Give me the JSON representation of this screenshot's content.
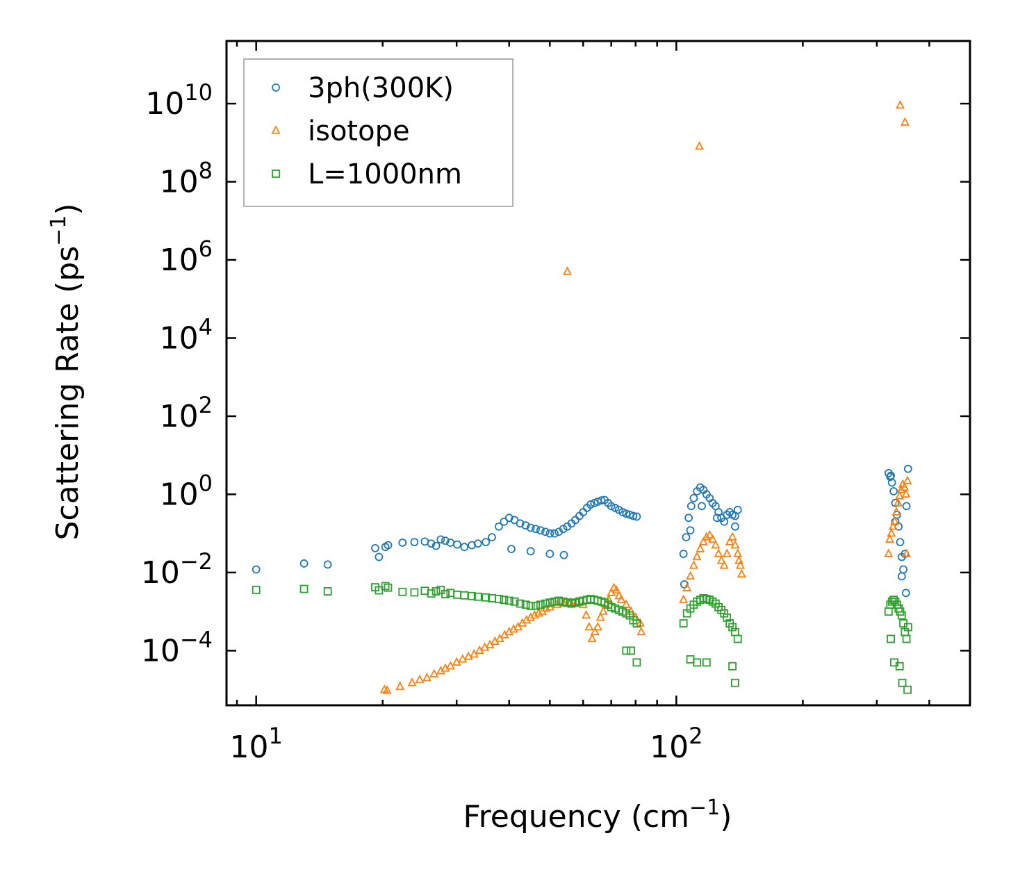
{
  "chart_data": {
    "type": "scatter",
    "title": "",
    "xlabel": "Frequency (cm",
    "xlabel_sup": "−1",
    "xlabel_end": ")",
    "ylabel": "Scattering Rate (ps",
    "ylabel_sup": "−1",
    "ylabel_end": ")",
    "xscale": "log",
    "yscale": "log",
    "xlim": [
      8.5,
      500
    ],
    "ylim": [
      4e-06,
      400000000000
    ],
    "x_ticks": [
      {
        "value": 10,
        "base": "10",
        "exp": "1"
      },
      {
        "value": 100,
        "base": "10",
        "exp": "2"
      }
    ],
    "y_ticks": [
      {
        "value": 0.0001,
        "base": "10",
        "exp": "−4"
      },
      {
        "value": 0.01,
        "base": "10",
        "exp": "−2"
      },
      {
        "value": 1,
        "base": "10",
        "exp": "0"
      },
      {
        "value": 100,
        "base": "10",
        "exp": "2"
      },
      {
        "value": 10000,
        "base": "10",
        "exp": "4"
      },
      {
        "value": 1000000,
        "base": "10",
        "exp": "6"
      },
      {
        "value": 100000000,
        "base": "10",
        "exp": "8"
      },
      {
        "value": 10000000000,
        "base": "10",
        "exp": "10"
      }
    ],
    "legend_position": "top-left",
    "series": [
      {
        "name": "3ph(300K)",
        "marker": "circle",
        "color": "#1f77b4",
        "x": [
          10.0,
          13.0,
          14.8,
          19.2,
          19.6,
          20.3,
          20.6,
          22.3,
          23.8,
          25.2,
          26.1,
          26.8,
          27.5,
          28.2,
          29.0,
          30.1,
          31.3,
          32.6,
          33.7,
          35.2,
          36.4,
          37.8,
          38.9,
          40.0,
          41.2,
          42.5,
          43.8,
          45.0,
          46.3,
          47.5,
          48.8,
          50.0,
          51.3,
          52.5,
          53.8,
          55.0,
          56.3,
          57.5,
          58.8,
          60.0,
          61.3,
          62.5,
          63.8,
          65.0,
          66.3,
          67.5,
          68.8,
          70.0,
          71.5,
          73.0,
          74.5,
          76.0,
          77.5,
          79.0,
          80.5,
          40.5,
          45.0,
          50.0,
          54.0,
          104.0,
          105.5,
          107.0,
          108.5,
          110.0,
          112.0,
          114.0,
          116.0,
          118.0,
          120.0,
          122.0,
          124.0,
          126.0,
          128.0,
          130.0,
          132.0,
          134.0,
          136.0,
          138.0,
          140.0,
          104.5,
          108.0,
          115.0,
          125.0,
          138.0,
          320.0,
          323.0,
          326.0,
          329.0,
          332.0,
          335.0,
          338.0,
          341.0,
          344.0,
          347.0,
          350.0,
          353.0,
          356.0,
          324.0,
          332.0,
          344.0,
          352.0
        ],
        "y": [
          0.012,
          0.017,
          0.016,
          0.042,
          0.025,
          0.045,
          0.05,
          0.058,
          0.06,
          0.062,
          0.055,
          0.048,
          0.07,
          0.065,
          0.058,
          0.052,
          0.045,
          0.05,
          0.055,
          0.06,
          0.08,
          0.15,
          0.2,
          0.25,
          0.22,
          0.18,
          0.16,
          0.14,
          0.13,
          0.12,
          0.11,
          0.1,
          0.1,
          0.11,
          0.13,
          0.15,
          0.18,
          0.22,
          0.28,
          0.35,
          0.45,
          0.55,
          0.6,
          0.65,
          0.7,
          0.72,
          0.6,
          0.5,
          0.45,
          0.4,
          0.35,
          0.32,
          0.3,
          0.28,
          0.27,
          0.04,
          0.035,
          0.03,
          0.028,
          0.03,
          0.08,
          0.25,
          0.5,
          0.8,
          1.2,
          1.5,
          1.3,
          1.0,
          0.8,
          0.6,
          0.5,
          0.35,
          0.25,
          0.2,
          0.3,
          0.35,
          0.3,
          0.28,
          0.4,
          0.005,
          0.12,
          0.5,
          0.25,
          0.15,
          3.5,
          2.8,
          2.0,
          1.2,
          0.6,
          0.3,
          0.15,
          0.06,
          0.025,
          0.012,
          0.03,
          0.5,
          4.5,
          3.0,
          0.2,
          0.008,
          0.003
        ]
      },
      {
        "name": "isotope",
        "marker": "triangle",
        "color": "#ff7f0e",
        "x": [
          20.2,
          20.5,
          22.0,
          23.5,
          24.5,
          25.5,
          26.5,
          27.5,
          28.2,
          29.0,
          30.0,
          31.0,
          32.0,
          33.0,
          34.0,
          35.0,
          36.0,
          37.0,
          38.0,
          39.0,
          40.0,
          41.0,
          42.0,
          43.0,
          44.0,
          45.0,
          46.0,
          47.0,
          48.0,
          49.0,
          50.0,
          52.0,
          54.0,
          56.0,
          58.0,
          60.0,
          61.0,
          62.0,
          63.0,
          64.0,
          65.0,
          66.0,
          67.0,
          68.0,
          69.0,
          70.0,
          71.0,
          72.0,
          73.0,
          74.0,
          76.0,
          78.0,
          80.0,
          82.0,
          82.5,
          55.0,
          104.0,
          106.0,
          108.0,
          110.0,
          112.0,
          114.0,
          116.0,
          118.0,
          120.0,
          122.0,
          124.0,
          126.0,
          128.0,
          130.0,
          132.0,
          134.0,
          136.0,
          138.0,
          140.0,
          141.0,
          142.0,
          143.0,
          113.5,
          320.0,
          322.0,
          325.0,
          328.0,
          331.0,
          334.0,
          337.0,
          340.0,
          343.0,
          346.0,
          349.0,
          352.0,
          355.0,
          341.0,
          350.0,
          353.0
        ],
        "y": [
          1e-05,
          9.5e-06,
          1.2e-05,
          1.5e-05,
          1.8e-05,
          2e-05,
          2.5e-05,
          3e-05,
          3.5e-05,
          4e-05,
          5e-05,
          6e-05,
          7e-05,
          8e-05,
          0.0001,
          0.00012,
          0.00014,
          0.00017,
          0.0002,
          0.00025,
          0.0003,
          0.00035,
          0.0004,
          0.0005,
          0.0006,
          0.0007,
          0.0008,
          0.0009,
          0.001,
          0.0012,
          0.0013,
          0.0015,
          0.0016,
          0.0017,
          0.0018,
          0.0015,
          0.0008,
          0.0004,
          0.0002,
          0.0003,
          0.0004,
          0.0007,
          0.001,
          0.0015,
          0.002,
          0.003,
          0.004,
          0.0035,
          0.0025,
          0.002,
          0.0015,
          0.001,
          0.0007,
          0.0005,
          0.0003,
          500000,
          0.002,
          0.004,
          0.008,
          0.015,
          0.025,
          0.04,
          0.06,
          0.08,
          0.09,
          0.07,
          0.05,
          0.03,
          0.02,
          0.015,
          0.03,
          0.06,
          0.08,
          0.05,
          0.03,
          0.02,
          0.015,
          0.009,
          800000000,
          0.03,
          0.07,
          0.1,
          0.15,
          0.2,
          0.35,
          0.6,
          0.9,
          1.3,
          1.8,
          1.5,
          1.0,
          2.2,
          9000000000,
          3300000000,
          0.03
        ]
      },
      {
        "name": "L=1000nm",
        "marker": "square",
        "color": "#2ca02c",
        "x": [
          10.0,
          13.0,
          14.8,
          19.2,
          19.6,
          20.3,
          20.6,
          22.3,
          23.8,
          25.2,
          26.1,
          26.8,
          27.5,
          28.2,
          29.0,
          30.1,
          31.3,
          32.6,
          33.7,
          35.2,
          36.4,
          37.8,
          38.9,
          40.0,
          41.2,
          42.5,
          43.8,
          45.0,
          46.3,
          47.5,
          48.8,
          50.0,
          51.3,
          52.5,
          53.8,
          55.0,
          56.3,
          57.5,
          58.8,
          60.0,
          61.3,
          62.5,
          63.8,
          65.0,
          66.3,
          67.5,
          68.8,
          70.0,
          71.5,
          73.0,
          74.5,
          76.0,
          77.5,
          79.0,
          80.5,
          76.0,
          78.0,
          80.5,
          104.0,
          106.0,
          108.0,
          110.0,
          112.0,
          114.0,
          116.0,
          118.0,
          120.0,
          122.0,
          124.0,
          126.0,
          128.0,
          130.0,
          132.0,
          134.0,
          136.0,
          138.0,
          140.0,
          108.0,
          112.0,
          118.0,
          136.0,
          138.0,
          320.0,
          323.0,
          326.0,
          329.0,
          332.0,
          335.0,
          338.0,
          341.0,
          344.0,
          347.0,
          350.0,
          353.0,
          356.0,
          324.0,
          330.0,
          340.0,
          345.0,
          355.0
        ],
        "y": [
          0.0036,
          0.0038,
          0.0033,
          0.0042,
          0.0035,
          0.0045,
          0.0041,
          0.0032,
          0.0031,
          0.0034,
          0.0029,
          0.0033,
          0.0036,
          0.0028,
          0.003,
          0.0027,
          0.0026,
          0.0025,
          0.0024,
          0.0023,
          0.0022,
          0.0021,
          0.002,
          0.0019,
          0.0018,
          0.0016,
          0.0015,
          0.0014,
          0.0014,
          0.0015,
          0.0016,
          0.0017,
          0.0018,
          0.0019,
          0.0018,
          0.0017,
          0.0016,
          0.0017,
          0.0018,
          0.0019,
          0.002,
          0.0021,
          0.002,
          0.0019,
          0.0018,
          0.0017,
          0.0015,
          0.0013,
          0.0012,
          0.0011,
          0.001,
          0.0009,
          0.0008,
          0.0006,
          0.0005,
          0.0001,
          0.0001,
          5e-05,
          0.0005,
          0.0009,
          0.0012,
          0.0015,
          0.0018,
          0.002,
          0.0022,
          0.0021,
          0.002,
          0.0018,
          0.0016,
          0.0013,
          0.0011,
          0.0009,
          0.0007,
          0.0005,
          0.0004,
          0.0003,
          0.0002,
          6e-05,
          5e-05,
          5e-05,
          4e-05,
          1.5e-05,
          0.001,
          0.0015,
          0.0018,
          0.002,
          0.0018,
          0.0015,
          0.0012,
          0.001,
          0.0008,
          0.0005,
          0.0003,
          0.0002,
          0.0004,
          0.0002,
          5e-05,
          4e-05,
          1.5e-05,
          1e-05
        ]
      }
    ]
  }
}
